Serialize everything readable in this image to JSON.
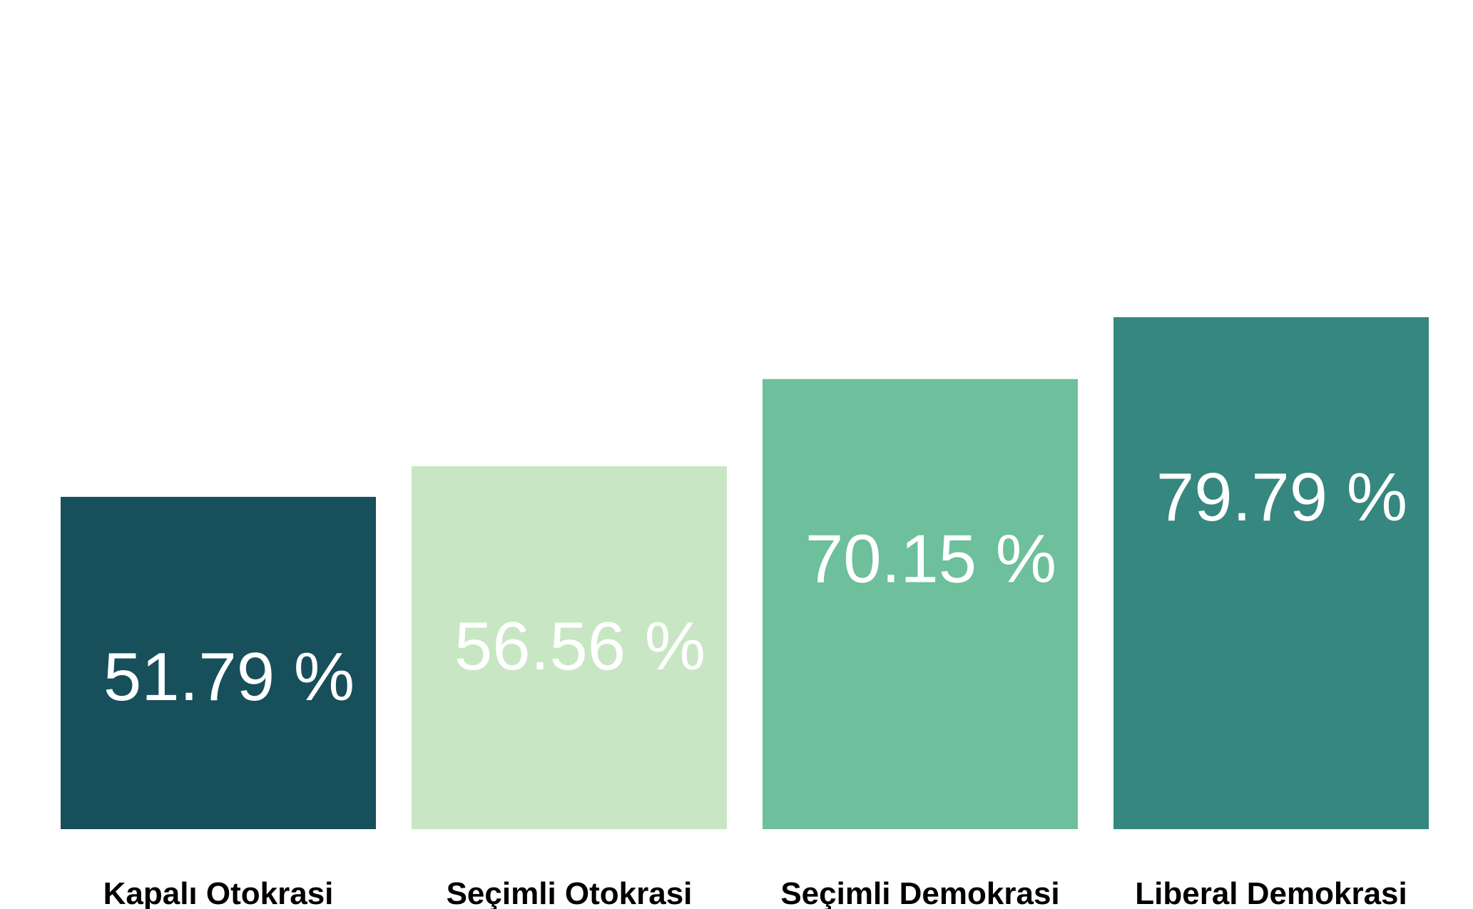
{
  "chart_data": {
    "type": "bar",
    "categories": [
      "Kapalı Otokrasi",
      "Seçimli Otokrasi",
      "Seçimli Demokrasi",
      "Liberal Demokrasi"
    ],
    "values": [
      51.79,
      56.56,
      70.15,
      79.79
    ],
    "value_labels": [
      "51.79 %",
      "56.56 %",
      "70.15 %",
      "79.79 %"
    ],
    "colors": [
      "#174f5b",
      "#c8e6c3",
      "#6ebf9c",
      "#35877f"
    ],
    "title": "",
    "xlabel": "",
    "ylabel": "",
    "ylim": [
      0,
      80
    ],
    "grid": false,
    "legend": "none"
  }
}
